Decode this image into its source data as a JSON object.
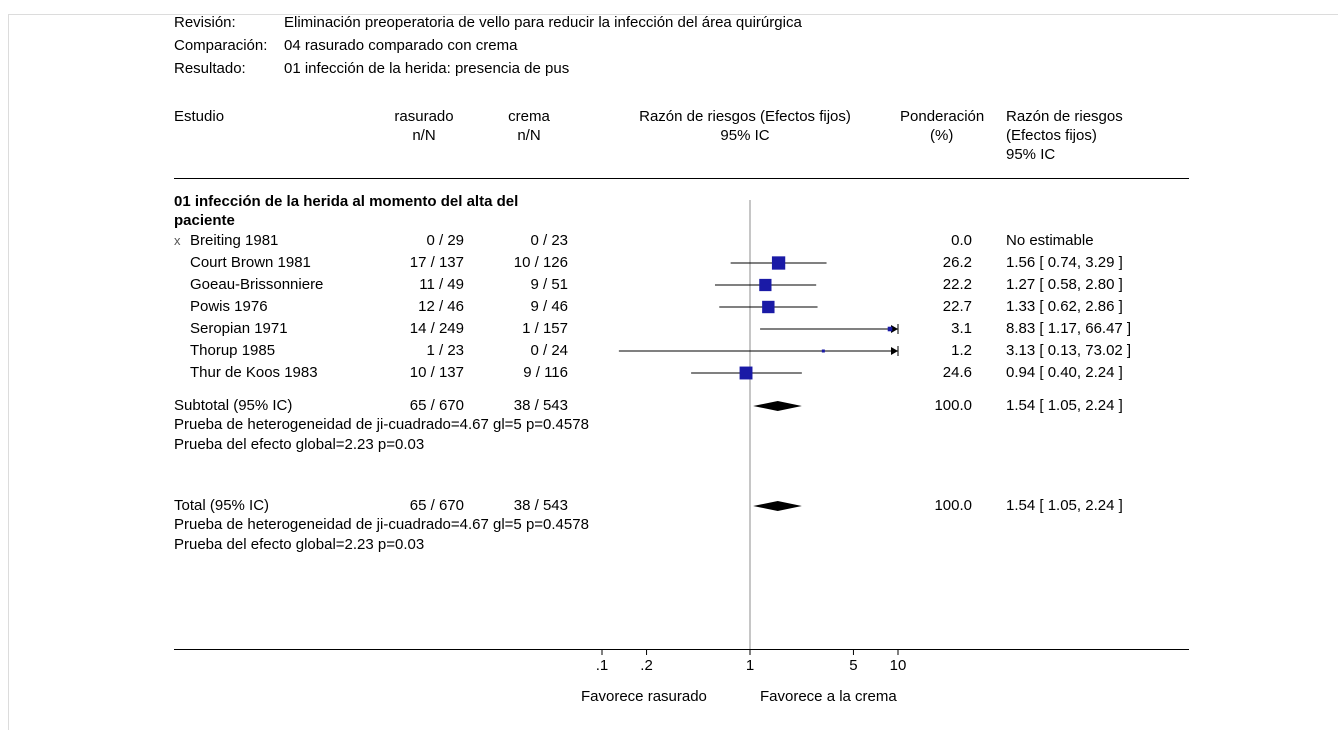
{
  "header": {
    "review_label": "Revisión:",
    "review_value": "Eliminación preoperatoria de vello para reducir la infección del área quirúrgica",
    "comparison_label": "Comparación:",
    "comparison_value": "04 rasurado comparado con crema",
    "outcome_label": "Resultado:",
    "outcome_value": "01 infección de la herida: presencia de pus"
  },
  "columns": {
    "study": "Estudio",
    "shaved": "rasurado",
    "shaved_sub": "n/N",
    "cream": "crema",
    "cream_sub": "n/N",
    "plot_title": "Razón de riesgos (Efectos fijos)",
    "plot_sub": "95% IC",
    "weight": "Ponderación",
    "weight_sub": "(%)",
    "rr": "Razón de riesgos",
    "rr_sub1": "(Efectos fijos)",
    "rr_sub2": "95% IC"
  },
  "subgroup_title_line1": "01 infección de la herida al momento del alta del",
  "subgroup_title_line2": "paciente",
  "excluded_marker": "x",
  "studies": [
    {
      "name": "Breiting 1981",
      "shaved": "0 / 29",
      "cream": "0 / 23",
      "weight": "0.0",
      "rr_text": "No estimable",
      "excluded": true
    },
    {
      "name": "Court Brown 1981",
      "shaved": "17 / 137",
      "cream": "10 / 126",
      "weight": "26.2",
      "rr_text": "1.56 [ 0.74, 3.29 ]"
    },
    {
      "name": "Goeau-Brissonniere",
      "shaved": "11 / 49",
      "cream": "9 / 51",
      "weight": "22.2",
      "rr_text": "1.27 [ 0.58, 2.80 ]"
    },
    {
      "name": "Powis 1976",
      "shaved": "12 / 46",
      "cream": "9 / 46",
      "weight": "22.7",
      "rr_text": "1.33 [ 0.62, 2.86 ]"
    },
    {
      "name": "Seropian 1971",
      "shaved": "14 / 249",
      "cream": "1 / 157",
      "weight": "3.1",
      "rr_text": "8.83 [ 1.17, 66.47 ]"
    },
    {
      "name": "Thorup 1985",
      "shaved": "1 / 23",
      "cream": "0 / 24",
      "weight": "1.2",
      "rr_text": "3.13 [ 0.13, 73.02 ]"
    },
    {
      "name": "Thur de Koos 1983",
      "shaved": "10 / 137",
      "cream": "9 / 116",
      "weight": "24.6",
      "rr_text": "0.94 [ 0.40, 2.24 ]"
    }
  ],
  "subtotal": {
    "label": "Subtotal (95% IC)",
    "shaved": "65 / 670",
    "cream": "38 / 543",
    "weight": "100.0",
    "rr_text": "1.54 [ 1.05, 2.24 ]",
    "het": "Prueba de heterogeneidad de ji-cuadrado=4.67 gl=5 p=0.4578",
    "overall": "Prueba del efecto global=2.23 p=0.03"
  },
  "total": {
    "label": "Total (95% IC)",
    "shaved": "65 / 670",
    "cream": "38 / 543",
    "weight": "100.0",
    "rr_text": "1.54 [ 1.05, 2.24 ]",
    "het": "Prueba de heterogeneidad de ji-cuadrado=4.67 gl=5 p=0.4578",
    "overall": "Prueba del efecto global=2.23 p=0.03"
  },
  "axis": {
    "tick_labels": [
      ".1",
      ".2",
      "1",
      "5",
      "10"
    ],
    "favours_left": "Favorece rasurado",
    "favours_right": "Favorece a la crema"
  },
  "chart_data": {
    "type": "forest",
    "scale": "log",
    "xlim": [
      0.1,
      10
    ],
    "ticks": [
      0.1,
      0.2,
      1,
      5,
      10
    ],
    "studies": [
      {
        "name": "Breiting 1981",
        "rr": null,
        "lo": null,
        "hi": null,
        "weight": 0.0
      },
      {
        "name": "Court Brown 1981",
        "rr": 1.56,
        "lo": 0.74,
        "hi": 3.29,
        "weight": 26.2
      },
      {
        "name": "Goeau-Brissonniere",
        "rr": 1.27,
        "lo": 0.58,
        "hi": 2.8,
        "weight": 22.2
      },
      {
        "name": "Powis 1976",
        "rr": 1.33,
        "lo": 0.62,
        "hi": 2.86,
        "weight": 22.7
      },
      {
        "name": "Seropian 1971",
        "rr": 8.83,
        "lo": 1.17,
        "hi": 66.47,
        "weight": 3.1
      },
      {
        "name": "Thorup 1985",
        "rr": 3.13,
        "lo": 0.13,
        "hi": 73.02,
        "weight": 1.2
      },
      {
        "name": "Thur de Koos 1983",
        "rr": 0.94,
        "lo": 0.4,
        "hi": 2.24,
        "weight": 24.6
      }
    ],
    "pooled": [
      {
        "name": "Subtotal (95% IC)",
        "rr": 1.54,
        "lo": 1.05,
        "hi": 2.24
      },
      {
        "name": "Total (95% IC)",
        "rr": 1.54,
        "lo": 1.05,
        "hi": 2.24
      }
    ],
    "colors": {
      "marker": "#1a1aa6",
      "line": "#000000",
      "null_line": "#a0a0a0"
    }
  }
}
